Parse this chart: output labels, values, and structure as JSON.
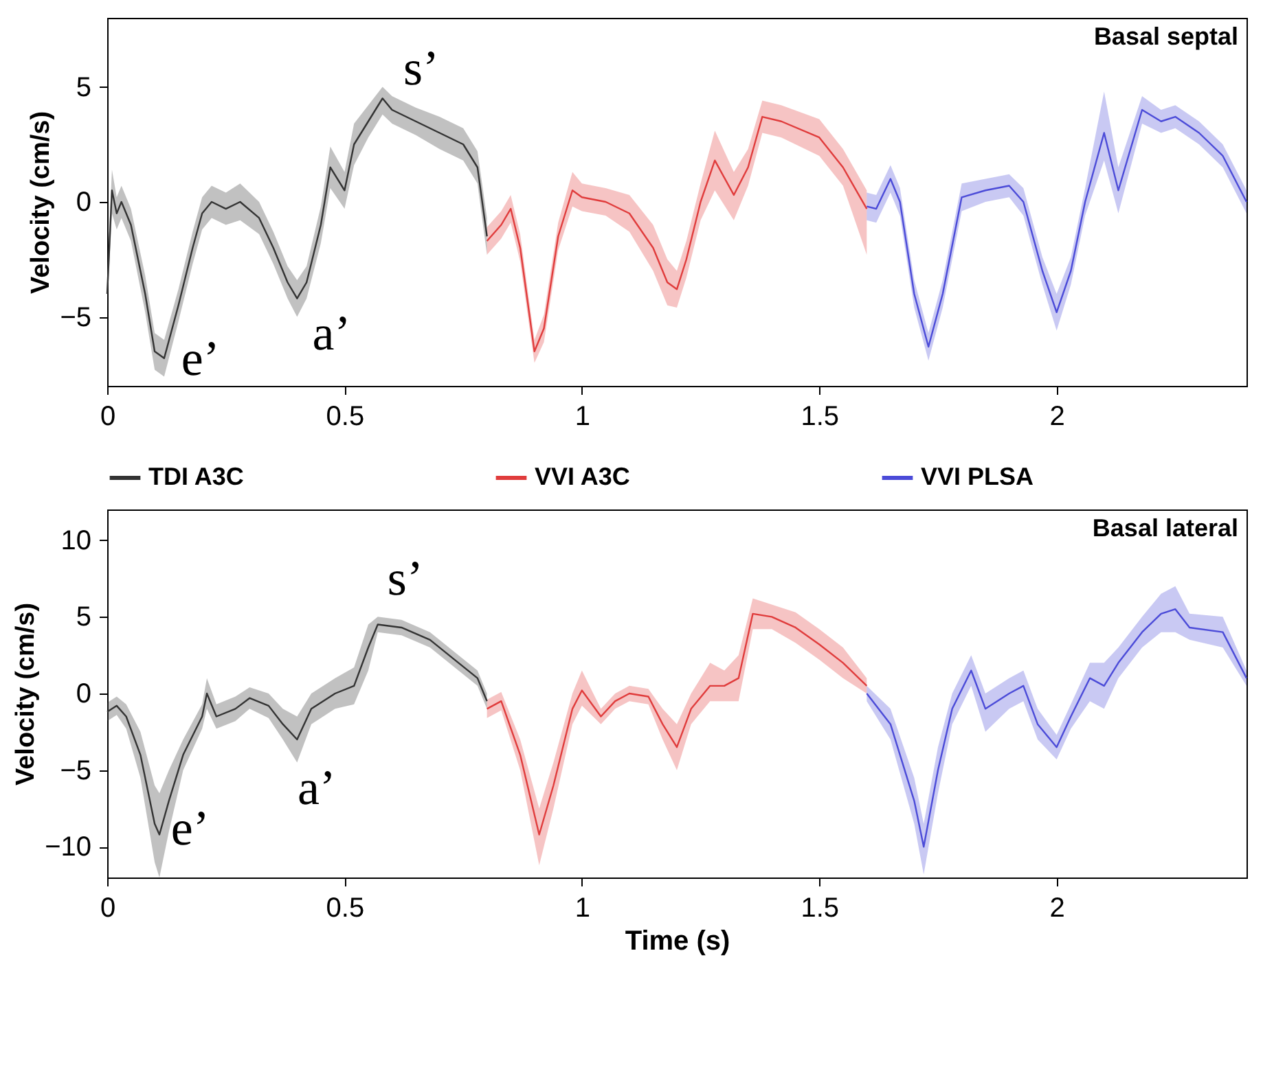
{
  "chart_data": [
    {
      "type": "line",
      "ylabel": "Velocity (cm/s)",
      "xlim": [
        0,
        2.4
      ],
      "xticks": [
        0,
        0.5,
        1,
        1.5,
        2
      ],
      "ylim": [
        -8,
        8
      ],
      "yticks": [
        -5,
        0,
        5
      ],
      "grid": false,
      "legend": "bottom",
      "annotations": [
        "Basal septal",
        "e’",
        "a’",
        "s’"
      ],
      "series": [
        {
          "name": "TDI A3C",
          "color": "#333333",
          "x": [
            0,
            0.01,
            0.02,
            0.03,
            0.05,
            0.08,
            0.1,
            0.12,
            0.15,
            0.18,
            0.2,
            0.22,
            0.25,
            0.28,
            0.32,
            0.35,
            0.38,
            0.4,
            0.42,
            0.45,
            0.47,
            0.5,
            0.52,
            0.55,
            0.58,
            0.6,
            0.65,
            0.7,
            0.75,
            0.78,
            0.8
          ],
          "values": [
            -4,
            0.5,
            -0.5,
            0,
            -1,
            -4,
            -6.5,
            -6.8,
            -4.5,
            -2,
            -0.5,
            0,
            -0.3,
            0,
            -0.7,
            -2,
            -3.5,
            -4.2,
            -3.5,
            -1,
            1.5,
            0.5,
            2.5,
            3.5,
            4.5,
            4,
            3.5,
            3,
            2.5,
            1.5,
            -1.5
          ],
          "lower": [
            -4.7,
            -0.5,
            -1.2,
            -0.7,
            -1.7,
            -4.8,
            -7.3,
            -7.6,
            -5.2,
            -2.7,
            -1.2,
            -0.7,
            -1,
            -0.8,
            -1.4,
            -2.7,
            -4.2,
            -5,
            -4.2,
            -1.8,
            0.6,
            -0.3,
            1.6,
            2.8,
            3.8,
            3.4,
            2.9,
            2.3,
            1.8,
            0.8,
            -2.3
          ],
          "upper": [
            -3.3,
            1.4,
            0.2,
            0.7,
            -0.3,
            -3.2,
            -5.7,
            -6,
            -3.8,
            -1.3,
            0.2,
            0.7,
            0.4,
            0.8,
            0,
            -1.3,
            -2.8,
            -3.4,
            -2.8,
            -0.2,
            2.4,
            1.3,
            3.4,
            4.2,
            5,
            4.6,
            4.1,
            3.7,
            3.2,
            2.2,
            -0.7
          ]
        },
        {
          "name": "VVI A3C",
          "color": "#e03c3c",
          "x": [
            0.8,
            0.83,
            0.85,
            0.87,
            0.9,
            0.92,
            0.95,
            0.98,
            1,
            1.05,
            1.1,
            1.15,
            1.18,
            1.2,
            1.22,
            1.25,
            1.28,
            1.32,
            1.35,
            1.38,
            1.42,
            1.5,
            1.55,
            1.6
          ],
          "values": [
            -1.7,
            -1,
            -0.3,
            -2,
            -6.5,
            -5.5,
            -1.5,
            0.5,
            0.2,
            0,
            -0.5,
            -2,
            -3.5,
            -3.8,
            -2.5,
            0,
            1.8,
            0.3,
            1.5,
            3.7,
            3.5,
            2.8,
            1.5,
            -0.3
          ],
          "lower": [
            -2.3,
            -1.6,
            -0.9,
            -2.6,
            -7,
            -6.1,
            -2.1,
            -0.2,
            -0.4,
            -0.6,
            -1.3,
            -3,
            -4.5,
            -4.6,
            -3.3,
            -0.8,
            0.5,
            -0.8,
            0.7,
            3,
            2.8,
            2,
            0.7,
            -2.3
          ],
          "upper": [
            -1.1,
            -0.4,
            0.3,
            -1.4,
            -6,
            -4.9,
            -0.9,
            1.3,
            0.8,
            0.6,
            0.3,
            -1,
            -2.5,
            -3,
            -1.7,
            0.8,
            3.1,
            1.3,
            2.3,
            4.4,
            4.2,
            3.6,
            2.3,
            0.5
          ]
        },
        {
          "name": "VVI PLSA",
          "color": "#4b4bd8",
          "x": [
            1.6,
            1.62,
            1.65,
            1.67,
            1.7,
            1.73,
            1.76,
            1.8,
            1.85,
            1.9,
            1.93,
            1.97,
            2,
            2.03,
            2.06,
            2.1,
            2.13,
            2.18,
            2.22,
            2.25,
            2.3,
            2.35,
            2.4
          ],
          "values": [
            -0.2,
            -0.3,
            1,
            0,
            -4,
            -6.3,
            -4,
            0.2,
            0.5,
            0.7,
            0,
            -3,
            -4.8,
            -3,
            0,
            3,
            0.5,
            4,
            3.5,
            3.7,
            3,
            2,
            0
          ],
          "lower": [
            -0.8,
            -0.9,
            0.4,
            -0.6,
            -4.6,
            -6.9,
            -4.6,
            -0.4,
            0,
            0.2,
            -0.6,
            -3.6,
            -5.6,
            -3.6,
            -0.6,
            1.8,
            -0.5,
            3.4,
            3,
            3.2,
            2.5,
            1.5,
            -0.5
          ],
          "upper": [
            0.4,
            0.3,
            1.6,
            0.6,
            -3.4,
            -5.7,
            -3.4,
            0.8,
            1,
            1.2,
            0.6,
            -2.4,
            -4,
            -2.4,
            0.6,
            4.8,
            1.5,
            4.6,
            4,
            4.2,
            3.5,
            2.5,
            0.5
          ]
        }
      ]
    },
    {
      "type": "line",
      "xlabel": "Time (s)",
      "ylabel": "Velocity (cm/s)",
      "xlim": [
        0,
        2.4
      ],
      "xticks": [
        0,
        0.5,
        1,
        1.5,
        2
      ],
      "ylim": [
        -12,
        12
      ],
      "yticks": [
        -10,
        -5,
        0,
        5,
        10
      ],
      "grid": false,
      "annotations": [
        "Basal lateral",
        "e’",
        "a’",
        "s’"
      ],
      "series": [
        {
          "color": "#333333",
          "x": [
            0,
            0.02,
            0.04,
            0.07,
            0.1,
            0.11,
            0.13,
            0.16,
            0.2,
            0.21,
            0.23,
            0.27,
            0.3,
            0.34,
            0.37,
            0.4,
            0.43,
            0.48,
            0.52,
            0.55,
            0.57,
            0.62,
            0.68,
            0.74,
            0.78,
            0.8
          ],
          "values": [
            -1.2,
            -0.8,
            -1.5,
            -4,
            -8.5,
            -9.2,
            -7,
            -4,
            -1.5,
            0,
            -1.5,
            -1,
            -0.3,
            -0.8,
            -2,
            -3,
            -1,
            0,
            0.5,
            3,
            4.5,
            4.3,
            3.5,
            2,
            1,
            -0.5
          ],
          "lower": [
            -1.8,
            -1.4,
            -2.3,
            -5.5,
            -11,
            -12,
            -9,
            -5,
            -2.3,
            -1,
            -2.3,
            -1.8,
            -1,
            -1.6,
            -3,
            -4.5,
            -2,
            -1,
            -0.7,
            1.5,
            4,
            3.8,
            3,
            1.5,
            0.5,
            -1
          ],
          "upper": [
            -0.6,
            -0.2,
            -0.7,
            -2.5,
            -6,
            -6.5,
            -5,
            -3,
            -0.7,
            1,
            -0.7,
            -0.2,
            0.4,
            0,
            -1,
            -1.5,
            0,
            1,
            1.7,
            4.5,
            5,
            4.8,
            4,
            2.5,
            1.5,
            0
          ]
        },
        {
          "color": "#e03c3c",
          "x": [
            0.8,
            0.83,
            0.87,
            0.91,
            0.94,
            0.98,
            1,
            1.04,
            1.07,
            1.1,
            1.14,
            1.17,
            1.2,
            1.23,
            1.27,
            1.3,
            1.33,
            1.36,
            1.4,
            1.45,
            1.5,
            1.55,
            1.6
          ],
          "values": [
            -1,
            -0.5,
            -4,
            -9.2,
            -6,
            -1,
            0.2,
            -1.5,
            -0.5,
            0,
            -0.2,
            -2,
            -3.5,
            -1,
            0.5,
            0.5,
            1,
            5.2,
            5,
            4.3,
            3.2,
            2,
            0.5
          ],
          "lower": [
            -1.6,
            -1.1,
            -5,
            -11.2,
            -7.5,
            -2,
            -0.8,
            -2,
            -1,
            -0.5,
            -0.7,
            -3,
            -5,
            -2,
            -0.5,
            -0.5,
            -0.5,
            4.2,
            4.2,
            3.3,
            2.2,
            1,
            0
          ],
          "upper": [
            -0.4,
            0.1,
            -3,
            -7.5,
            -4.5,
            0,
            1.5,
            -1,
            0,
            0.5,
            0.3,
            -1,
            -2,
            0,
            2,
            1.5,
            2.5,
            6.2,
            5.8,
            5.3,
            4.2,
            3,
            1
          ]
        },
        {
          "color": "#4b4bd8",
          "x": [
            1.6,
            1.65,
            1.7,
            1.72,
            1.75,
            1.78,
            1.82,
            1.85,
            1.9,
            1.93,
            1.96,
            2,
            2.03,
            2.07,
            2.1,
            2.13,
            2.18,
            2.22,
            2.25,
            2.28,
            2.35,
            2.4
          ],
          "values": [
            0,
            -2,
            -7,
            -10,
            -5,
            -1,
            1.5,
            -1,
            0,
            0.5,
            -2,
            -3.5,
            -1.5,
            1,
            0.5,
            2,
            4,
            5.2,
            5.5,
            4.3,
            4,
            1
          ],
          "lower": [
            -0.5,
            -3,
            -8.5,
            -11.8,
            -6.5,
            -2,
            0.5,
            -2.5,
            -1,
            -0.5,
            -3,
            -4.3,
            -2.3,
            -0.5,
            -1,
            1,
            3,
            4,
            4,
            3.5,
            3,
            0.5
          ],
          "upper": [
            0.5,
            -1,
            -5.5,
            -8.5,
            -3.5,
            0,
            2.5,
            0,
            1,
            1.5,
            -1,
            -2.7,
            -0.7,
            2,
            2,
            3,
            5,
            6.5,
            7,
            5.2,
            5,
            1.5
          ]
        }
      ]
    }
  ]
}
